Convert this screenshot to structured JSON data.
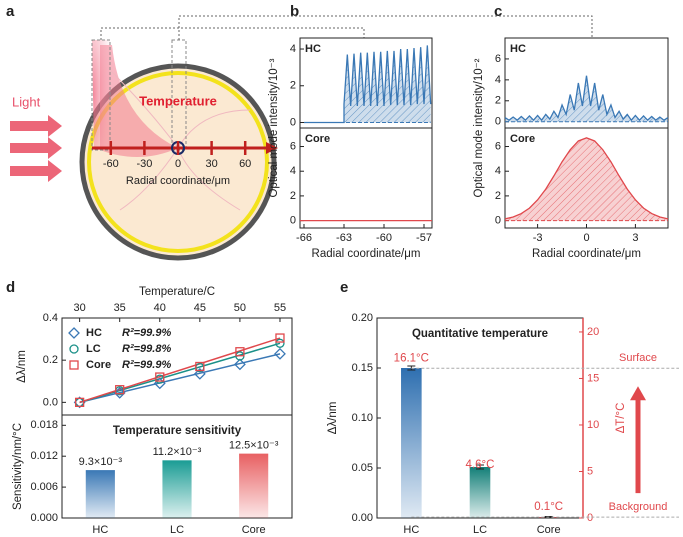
{
  "panel_labels": [
    "a",
    "b",
    "c",
    "d",
    "e"
  ],
  "diagram": {
    "light": "Light",
    "temperature": "Temperature",
    "axis_label": "Radial coordinate/μm",
    "axis_ticks": [
      -60,
      -30,
      0,
      30,
      60
    ]
  },
  "chart_data": [
    {
      "type": "line",
      "title": "HC",
      "ylabel": "Optical mode intensity/10⁻³",
      "fill": true,
      "x": [
        -66,
        -63,
        -63,
        -62.75,
        -62.5,
        -62.25,
        -62,
        -61.75,
        -61.5,
        -61.25,
        -61,
        -60.75,
        -60.5,
        -60.25,
        -60,
        -59.75,
        -59.5,
        -59.25,
        -59,
        -58.75,
        -58.5,
        -58.25,
        -58,
        -57.75,
        -57.5,
        -57.25,
        -57,
        -56.75,
        -56.5
      ],
      "series": [
        {
          "color": "#3a78b5",
          "values": [
            0,
            0,
            1.0,
            3.7,
            0.9,
            3.75,
            0.9,
            3.8,
            0.9,
            3.8,
            0.9,
            3.85,
            0.9,
            3.85,
            0.9,
            3.9,
            0.95,
            3.9,
            0.95,
            4.0,
            0.95,
            4.0,
            0.95,
            4.05,
            1.0,
            4.1,
            1.0,
            4.2,
            1.0
          ]
        }
      ],
      "xlim": [
        -66.3,
        -56.4
      ],
      "ylim": [
        -0.3,
        4.6
      ],
      "yticks": [
        0,
        2,
        4
      ]
    },
    {
      "type": "line",
      "title": "Core",
      "xlabel": "Radial coordinate/μm",
      "fill": false,
      "x": [
        -66.3,
        -56.4
      ],
      "series": [
        {
          "color": "#e0484c",
          "values": [
            0,
            0
          ]
        }
      ],
      "xlim": [
        -66.3,
        -56.4
      ],
      "ylim": [
        -0.6,
        7.5
      ],
      "xticks": [
        -66,
        -63,
        -60,
        -57
      ],
      "yticks": [
        0,
        2,
        4,
        6
      ]
    },
    {
      "type": "line",
      "title": "HC",
      "ylabel": "Optical mode intensity/10⁻²",
      "fill": true,
      "x": [
        -5,
        -4.75,
        -4.5,
        -4.25,
        -4,
        -3.75,
        -3.5,
        -3.25,
        -3,
        -2.75,
        -2.5,
        -2.25,
        -2,
        -1.75,
        -1.5,
        -1.25,
        -1,
        -0.75,
        -0.5,
        -0.25,
        0,
        0.25,
        0.5,
        0.75,
        1,
        1.25,
        1.5,
        1.75,
        2,
        2.25,
        2.5,
        2.75,
        3,
        3.25,
        3.5,
        3.75,
        4,
        4.25,
        4.5,
        4.75,
        5
      ],
      "series": [
        {
          "color": "#3a78b5",
          "values": [
            0.4,
            0.15,
            0.45,
            0.15,
            0.5,
            0.15,
            0.55,
            0.15,
            0.6,
            0.15,
            0.7,
            0.25,
            1.0,
            0.4,
            1.6,
            0.7,
            2.6,
            1.1,
            3.7,
            1.5,
            4.4,
            1.5,
            3.7,
            1.1,
            2.6,
            0.7,
            1.6,
            0.4,
            1.0,
            0.25,
            0.7,
            0.15,
            0.6,
            0.15,
            0.55,
            0.15,
            0.5,
            0.15,
            0.45,
            0.15,
            0.4
          ]
        }
      ],
      "xlim": [
        -5,
        5
      ],
      "ylim": [
        -0.6,
        8
      ],
      "yticks": [
        0,
        2,
        4,
        6
      ]
    },
    {
      "type": "line",
      "title": "Core",
      "xlabel": "Radial coordinate/μm",
      "fill": true,
      "x": [
        -5,
        -4.5,
        -4,
        -3.5,
        -3,
        -2.5,
        -2,
        -1.5,
        -1,
        -0.5,
        0,
        0.5,
        1,
        1.5,
        2,
        2.5,
        3,
        3.5,
        4,
        4.5,
        5
      ],
      "series": [
        {
          "color": "#e0484c",
          "values": [
            0.14,
            0.29,
            0.57,
            1.01,
            1.68,
            2.55,
            3.62,
            4.76,
            5.74,
            6.45,
            6.7,
            6.45,
            5.74,
            4.76,
            3.62,
            2.55,
            1.68,
            1.01,
            0.57,
            0.29,
            0.14
          ]
        }
      ],
      "xlim": [
        -5,
        5
      ],
      "ylim": [
        -0.6,
        7.5
      ],
      "xticks": [
        -3,
        0,
        3
      ],
      "yticks": [
        0,
        2,
        4,
        6
      ]
    },
    {
      "type": "scatter",
      "xlabel": "Temperature/C",
      "ylabel": "Δλ/nm",
      "x": [
        30,
        35,
        40,
        45,
        50,
        55
      ],
      "series": [
        {
          "name": "HC",
          "r2": "R²=99.9%",
          "marker": "diamond",
          "color": "#3a78b5",
          "values": [
            0,
            0.045,
            0.09,
            0.135,
            0.18,
            0.23
          ]
        },
        {
          "name": "LC",
          "r2": "R²=99.8%",
          "marker": "circle",
          "color": "#1a9088",
          "values": [
            0,
            0.055,
            0.11,
            0.165,
            0.22,
            0.28
          ]
        },
        {
          "name": "Core",
          "r2": "R²=99.9%",
          "marker": "square",
          "color": "#e0484c",
          "values": [
            0,
            0.06,
            0.12,
            0.17,
            0.24,
            0.305
          ]
        }
      ],
      "xlim": [
        27.8,
        56.5
      ],
      "ylim": [
        -0.06,
        0.4
      ],
      "xticks": [
        30,
        35,
        40,
        45,
        50,
        55
      ],
      "yticks": [
        {
          "value": 0,
          "label": "0.0"
        },
        {
          "value": 0.2,
          "label": "0.2"
        },
        {
          "value": 0.4,
          "label": "0.4"
        }
      ]
    },
    {
      "type": "bar",
      "title": "Temperature sensitivity",
      "ylabel": "Sensitivity/nm/°C",
      "categories": [
        "HC",
        "LC",
        "Core"
      ],
      "colors": [
        "#3a78b5",
        "#1a9c94",
        "#e86062"
      ],
      "values": [
        0.0093,
        0.0112,
        0.0125
      ],
      "value_labels": [
        "9.3×10⁻³",
        "11.2×10⁻³",
        "12.5×10⁻³"
      ],
      "ylim": [
        0,
        0.02
      ],
      "yticks": [
        {
          "value": 0,
          "label": "0.000"
        },
        {
          "value": 0.006,
          "label": "0.006"
        },
        {
          "value": 0.012,
          "label": "0.012"
        },
        {
          "value": 0.018,
          "label": "0.018"
        }
      ]
    },
    {
      "type": "bar",
      "title": "Quantitative temperature",
      "ylabel": "Δλ/nm",
      "y2label": "ΔT/°C",
      "categories": [
        "HC",
        "LC",
        "Core"
      ],
      "colors": [
        "#2e6fb0",
        "#137f78",
        "#e0484c"
      ],
      "values": [
        0.15,
        0.051,
        0.001
      ],
      "errors": [
        0.002,
        0.002,
        0.0005
      ],
      "temperatures": {
        "axis": "y2",
        "color": "#e0484c",
        "values": [
          16.1,
          4.6,
          0.1
        ],
        "value_labels": [
          "16.1°C",
          "4.6°C",
          "0.1°C"
        ]
      },
      "annotations": [
        "Surface",
        "Background"
      ],
      "ylim": [
        0,
        0.2
      ],
      "y2lim": [
        0,
        21.5
      ],
      "yticks": [
        {
          "value": 0,
          "label": "0.00"
        },
        {
          "value": 0.05,
          "label": "0.05"
        },
        {
          "value": 0.1,
          "label": "0.10"
        },
        {
          "value": 0.15,
          "label": "0.15"
        },
        {
          "value": 0.2,
          "label": "0.20"
        }
      ],
      "y2ticks": [
        0,
        5,
        10,
        15,
        20
      ]
    }
  ]
}
